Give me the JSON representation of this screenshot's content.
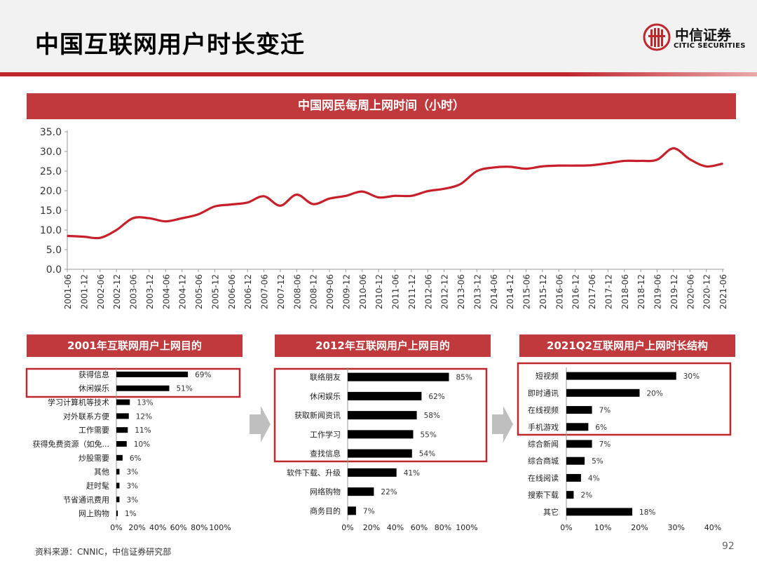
{
  "page": {
    "title": "中国互联网用户时长变迁",
    "source": "资料来源：CNNIC，中信证券研究部",
    "page_number": "92"
  },
  "logo": {
    "name_cn": "中信证券",
    "name_en": "CITIC SECURITIES",
    "brand_color": "#c0272d"
  },
  "colors": {
    "accent": "#c0393d",
    "line": "#c8202a",
    "bar": "#000000",
    "highlight_box": "#c0272d",
    "arrow": "#bfbfbf"
  },
  "chart_data": [
    {
      "type": "line",
      "title": "中国网民每周上网时间（小时）",
      "x": [
        "2001-06",
        "2001-12",
        "2002-06",
        "2002-12",
        "2003-06",
        "2003-12",
        "2004-06",
        "2004-12",
        "2005-06",
        "2005-12",
        "2006-06",
        "2006-12",
        "2007-06",
        "2007-12",
        "2008-06",
        "2008-12",
        "2009-06",
        "2009-12",
        "2010-06",
        "2010-12",
        "2011-06",
        "2011-12",
        "2012-06",
        "2012-12",
        "2013-06",
        "2013-12",
        "2014-06",
        "2014-12",
        "2015-06",
        "2015-12",
        "2016-06",
        "2016-12",
        "2017-06",
        "2017-12",
        "2018-06",
        "2018-12",
        "2019-06",
        "2019-12",
        "2020-06",
        "2020-12",
        "2021-06"
      ],
      "series": [
        {
          "values": [
            8.5,
            8.3,
            8.0,
            10.0,
            13.0,
            13.0,
            12.2,
            13.0,
            14.0,
            16.0,
            16.5,
            17.0,
            18.6,
            16.2,
            19.0,
            16.6,
            18.0,
            18.7,
            19.8,
            18.3,
            18.7,
            18.7,
            19.9,
            20.5,
            21.7,
            25.0,
            25.9,
            26.1,
            25.6,
            26.2,
            26.4,
            26.4,
            26.5,
            27.0,
            27.6,
            27.6,
            27.9,
            30.8,
            28.0,
            26.2,
            26.9
          ]
        }
      ],
      "ylim": [
        0,
        35
      ],
      "yticks": [
        "35.0",
        "30.0",
        "25.0",
        "20.0",
        "15.0",
        "10.0",
        "5.0",
        "0.0"
      ],
      "grid": false
    },
    {
      "type": "bar",
      "orientation": "horizontal",
      "title": "2001年互联网用户上网目的",
      "categories": [
        "获得信息",
        "休闲娱乐",
        "学习计算机等技术",
        "对外联系方便",
        "工作需要",
        "获得免费资源（如免...",
        "炒股需要",
        "其他",
        "赶时髦",
        "节省通讯费用",
        "网上购物"
      ],
      "values": [
        69,
        51,
        13,
        12,
        11,
        10,
        6,
        3,
        3,
        3,
        1
      ],
      "value_labels": [
        "69%",
        "51%",
        "13%",
        "12%",
        "11%",
        "10%",
        "6%",
        "3%",
        "3%",
        "3%",
        "1%"
      ],
      "xlim": [
        0,
        100
      ],
      "xticks": [
        "0%",
        "20%",
        "40%",
        "60%",
        "80%",
        "100%"
      ],
      "highlighted": [
        "获得信息",
        "休闲娱乐"
      ]
    },
    {
      "type": "bar",
      "orientation": "horizontal",
      "title": "2012年互联网用户上网目的",
      "categories": [
        "联络朋友",
        "休闲娱乐",
        "获取新闻资讯",
        "工作学习",
        "查找信息",
        "软件下载、升级",
        "网络购物",
        "商务目的"
      ],
      "values": [
        85,
        62,
        58,
        55,
        54,
        41,
        22,
        7
      ],
      "value_labels": [
        "85%",
        "62%",
        "58%",
        "55%",
        "54%",
        "41%",
        "22%",
        "7%"
      ],
      "xlim": [
        0,
        100
      ],
      "xticks": [
        "0%",
        "20%",
        "40%",
        "60%",
        "80%",
        "100%"
      ],
      "highlighted": [
        "联络朋友",
        "休闲娱乐",
        "获取新闻资讯",
        "工作学习",
        "查找信息"
      ]
    },
    {
      "type": "bar",
      "orientation": "horizontal",
      "title": "2021Q2互联网用户上网时长结构",
      "categories": [
        "短视频",
        "即时通讯",
        "在线视频",
        "手机游戏",
        "综合新闻",
        "综合商城",
        "在线阅读",
        "搜索下载",
        "其它"
      ],
      "values": [
        30,
        20,
        7,
        6,
        7,
        5,
        4,
        2,
        18
      ],
      "value_labels": [
        "30%",
        "20%",
        "7%",
        "6%",
        "7%",
        "5%",
        "4%",
        "2%",
        "18%"
      ],
      "xlim": [
        0,
        40
      ],
      "xticks": [
        "0%",
        "10%",
        "20%",
        "30%",
        "40%"
      ],
      "highlighted": [
        "短视频",
        "即时通讯",
        "在线视频",
        "手机游戏"
      ]
    }
  ]
}
